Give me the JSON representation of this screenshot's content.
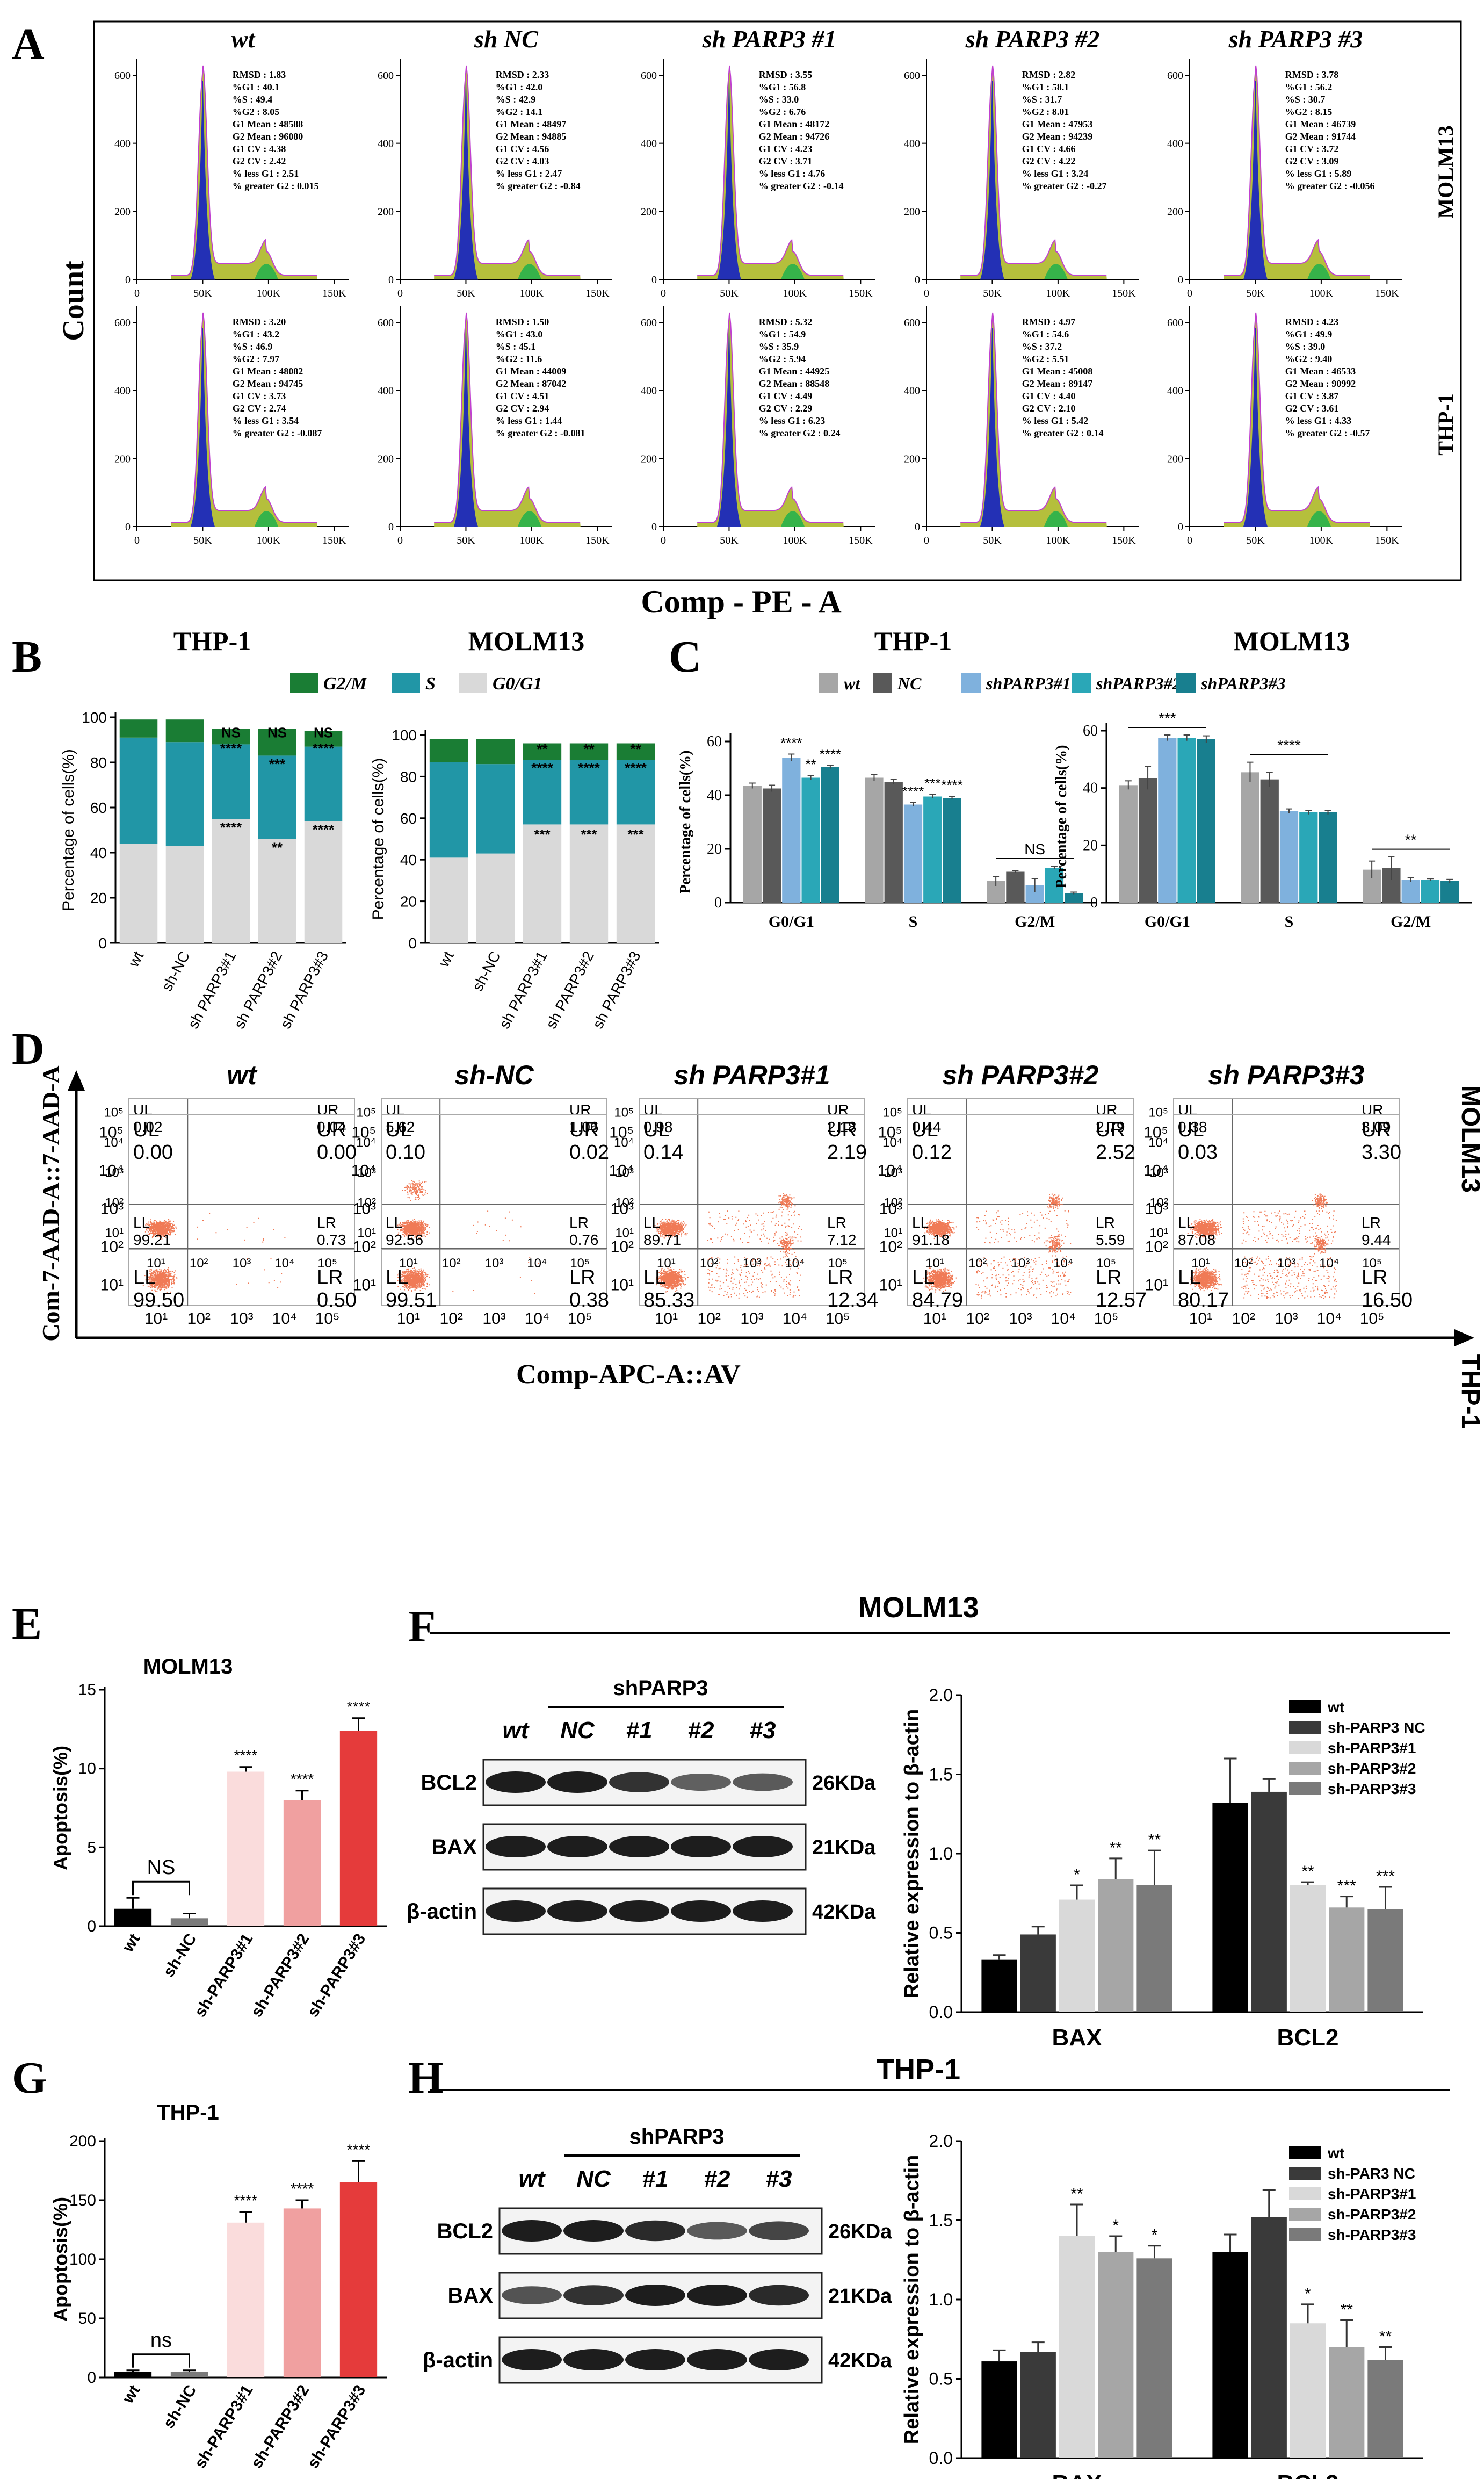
{
  "colors": {
    "g2m": "#1a7d34",
    "s": "#2196a6",
    "g0g1": "#d9d9d9",
    "bar_wt": "#a6a6a6",
    "bar_nc": "#595959",
    "bar_sh1": "#7fb1dd",
    "bar_sh2": "#2aa7b7",
    "bar_sh3": "#187f8f",
    "flow_fill": "#b5bf3c",
    "flow_g1": "#2330b5",
    "flow_g2": "#36b34a",
    "dot": "#f07a56",
    "apo1": "#000000",
    "apo2": "#7a7a7a",
    "apo3": "#fadcdc",
    "apo4": "#f0a0a0",
    "apo5": "#e53b3b"
  },
  "panelA": {
    "letter": "A",
    "ylabel": "Count",
    "xlabel": "Comp - PE - A",
    "cols": [
      "wt",
      "sh NC",
      "sh PARP3 #1",
      "sh PARP3 #2",
      "sh PARP3 #3"
    ],
    "rows": [
      "MOLM13",
      "THP-1"
    ],
    "xticks": [
      "0",
      "50K",
      "100K",
      "150K"
    ],
    "yticks_top": [
      "600",
      "400",
      "200",
      "0"
    ],
    "stats": [
      [
        [
          "RMSD : 1.83",
          "%G1 : 40.1",
          "%S : 49.4",
          "%G2 : 8.05",
          "G1 Mean : 48588",
          "G2 Mean : 96080",
          "G1 CV : 4.38",
          "G2 CV : 2.42",
          "% less G1 : 2.51",
          "% greater G2 : 0.015"
        ],
        [
          "RMSD : 2.33",
          "%G1 : 42.0",
          "%S : 42.9",
          "%G2 : 14.1",
          "G1 Mean : 48497",
          "G2 Mean : 94885",
          "G1 CV : 4.56",
          "G2 CV : 4.03",
          "% less G1 : 2.47",
          "% greater G2 : -0.84"
        ],
        [
          "RMSD : 3.55",
          "%G1 : 56.8",
          "%S : 33.0",
          "%G2 : 6.76",
          "G1 Mean : 48172",
          "G2 Mean : 94726",
          "G1 CV : 4.23",
          "G2 CV : 3.71",
          "% less G1 : 4.76",
          "% greater G2 : -0.14"
        ],
        [
          "RMSD : 2.82",
          "%G1 : 58.1",
          "%S : 31.7",
          "%G2 : 8.01",
          "G1 Mean : 47953",
          "G2 Mean : 94239",
          "G1 CV : 4.66",
          "G2 CV : 4.22",
          "% less G1 : 3.24",
          "% greater G2 : -0.27"
        ],
        [
          "RMSD : 3.78",
          "%G1 : 56.2",
          "%S : 30.7",
          "%G2 : 8.15",
          "G1 Mean : 46739",
          "G2 Mean : 91744",
          "G1 CV : 3.72",
          "G2 CV : 3.09",
          "% less G1 : 5.89",
          "% greater G2 : -0.056"
        ]
      ],
      [
        [
          "RMSD : 3.20",
          "%G1 : 43.2",
          "%S : 46.9",
          "%G2 : 7.97",
          "G1 Mean : 48082",
          "G2 Mean : 94745",
          "G1 CV : 3.73",
          "G2 CV : 2.74",
          "% less G1 : 3.54",
          "% greater G2 : -0.087"
        ],
        [
          "RMSD : 1.50",
          "%G1 : 43.0",
          "%S : 45.1",
          "%G2 : 11.6",
          "G1 Mean : 44009",
          "G2 Mean : 87042",
          "G1 CV : 4.51",
          "G2 CV : 2.94",
          "% less G1 : 1.44",
          "% greater G2 : -0.081"
        ],
        [
          "RMSD : 5.32",
          "%G1 : 54.9",
          "%S : 35.9",
          "%G2 : 5.94",
          "G1 Mean : 44925",
          "G2 Mean : 88548",
          "G1 CV : 4.49",
          "G2 CV : 2.29",
          "% less G1 : 6.23",
          "% greater G2 : 0.24"
        ],
        [
          "RMSD : 4.97",
          "%G1 : 54.6",
          "%S : 37.2",
          "%G2 : 5.51",
          "G1 Mean : 45008",
          "G2 Mean : 89147",
          "G1 CV : 4.40",
          "G2 CV : 2.10",
          "% less G1 : 5.42",
          "% greater G2 : 0.14"
        ],
        [
          "RMSD : 4.23",
          "%G1 : 49.9",
          "%S : 39.0",
          "%G2 : 9.40",
          "G1 Mean : 46533",
          "G2 Mean : 90992",
          "G1 CV : 3.87",
          "G2 CV : 3.61",
          "% less G1 : 4.33",
          "% greater G2 : -0.57"
        ]
      ]
    ]
  },
  "panelB": {
    "letter": "B",
    "legend": [
      "G2/M",
      "S",
      "G0/G1"
    ],
    "ylabel": "Percentage of cells(%)",
    "yticks": [
      "0",
      "20",
      "40",
      "60",
      "80",
      "100"
    ],
    "categories": [
      "wt",
      "sh-NC",
      "sh PARP3#1",
      "sh PARP3#2",
      "sh PARP3#3"
    ]
  },
  "panelC": {
    "letter": "C",
    "legend": [
      "wt",
      "NC",
      "shPARP3#1",
      "shPARP3#2",
      "shPARP3#3"
    ],
    "ylabel": "Percentage of cells(%)",
    "groups": [
      "G0/G1",
      "S",
      "G2/M"
    ]
  },
  "panelD": {
    "letter": "D",
    "cols": [
      "wt",
      "sh-NC",
      "sh PARP3#1",
      "sh PARP3#2",
      "sh PARP3#3"
    ],
    "rows": [
      "MOLM13",
      "THP-1"
    ],
    "ylabel": "Com-7-AAD-A::7-AAD-A",
    "xlabel": "Comp-APC-A::AV",
    "q_labels": [
      "UL",
      "UR",
      "LL",
      "LR"
    ],
    "ticks": [
      "10¹",
      "10²",
      "10³",
      "10⁴",
      "10⁵"
    ],
    "quadrants": [
      [
        [
          "0.02",
          "0.04",
          "99.21",
          "0.73"
        ],
        [
          "5.62",
          "1.06",
          "92.56",
          "0.76"
        ],
        [
          "0.98",
          "2.18",
          "89.71",
          "7.12"
        ],
        [
          "0.44",
          "2.79",
          "91.18",
          "5.59"
        ],
        [
          "0.38",
          "3.09",
          "87.08",
          "9.44"
        ]
      ],
      [
        [
          "0.00",
          "0.00",
          "99.50",
          "0.50"
        ],
        [
          "0.10",
          "0.02",
          "99.51",
          "0.38"
        ],
        [
          "0.14",
          "2.19",
          "85.33",
          "12.34"
        ],
        [
          "0.12",
          "2.52",
          "84.79",
          "12.57"
        ],
        [
          "0.03",
          "3.30",
          "80.17",
          "16.50"
        ]
      ]
    ]
  },
  "panelE": {
    "letter": "E",
    "title": "MOLM13",
    "ylabel": "Apoptosis(%)",
    "yticks": [
      "0",
      "5",
      "10",
      "15"
    ],
    "ns": "NS"
  },
  "panelG": {
    "letter": "G",
    "title": "THP-1",
    "ylabel": "Apoptosis(%)",
    "yticks": [
      "0",
      "50",
      "100",
      "150",
      "200"
    ],
    "ns": "ns"
  },
  "panelF": {
    "letter": "F",
    "title": "MOLM13",
    "group_label": "shPARP3",
    "lanes": [
      "wt",
      "NC",
      "#1",
      "#2",
      "#3"
    ],
    "proteins": [
      "BCL2",
      "BAX",
      "β-actin"
    ],
    "sizes": [
      "26KDa",
      "21KDa",
      "42KDa"
    ],
    "ylabel": "Relative expression to β-actin",
    "yticks": [
      "0.0",
      "0.5",
      "1.0",
      "1.5",
      "2.0"
    ],
    "legend": [
      "wt",
      "sh-PARP3 NC",
      "sh-PARP3#1",
      "sh-PARP3#2",
      "sh-PARP3#3"
    ]
  },
  "panelH": {
    "letter": "H",
    "title": "THP-1",
    "group_label": "shPARP3",
    "lanes": [
      "wt",
      "NC",
      "#1",
      "#2",
      "#3"
    ],
    "proteins": [
      "BCL2",
      "BAX",
      "β-actin"
    ],
    "sizes": [
      "26KDa",
      "21KDa",
      "42KDa"
    ],
    "ylabel": "Relative expression to β-actin",
    "yticks": [
      "0.0",
      "0.5",
      "1.0",
      "1.5",
      "2.0"
    ],
    "legend": [
      "wt",
      "sh-PAR3 NC",
      "sh-PARP3#1",
      "sh-PARP3#2",
      "sh-PARP3#3"
    ]
  },
  "chart_data": [
    {
      "id": "B-THP1",
      "type": "bar",
      "stacked": true,
      "title": "THP-1",
      "categories": [
        "wt",
        "sh-NC",
        "sh PARP3#1",
        "sh PARP3#2",
        "sh PARP3#3"
      ],
      "series": [
        {
          "name": "G0/G1",
          "values": [
            44,
            43,
            55,
            46,
            54
          ]
        },
        {
          "name": "S",
          "values": [
            47,
            46,
            33,
            37,
            33
          ]
        },
        {
          "name": "G2/M",
          "values": [
            8,
            10,
            7,
            12,
            7
          ]
        }
      ],
      "annotations": [
        {
          "category": 2,
          "level": 93,
          "text": "NS"
        },
        {
          "category": 2,
          "level": 86,
          "text": "****"
        },
        {
          "category": 2,
          "level": 51,
          "text": "****"
        },
        {
          "category": 3,
          "level": 93,
          "text": "NS"
        },
        {
          "category": 3,
          "level": 79,
          "text": "***"
        },
        {
          "category": 3,
          "level": 42,
          "text": "**"
        },
        {
          "category": 4,
          "level": 93,
          "text": "NS"
        },
        {
          "category": 4,
          "level": 86,
          "text": "****"
        },
        {
          "category": 4,
          "level": 50,
          "text": "****"
        }
      ],
      "ylabel": "Percentage of cells(%)",
      "ylim": [
        0,
        100
      ]
    },
    {
      "id": "B-MOLM13",
      "type": "bar",
      "stacked": true,
      "title": "MOLM13",
      "categories": [
        "wt",
        "sh-NC",
        "sh PARP3#1",
        "sh PARP3#2",
        "sh PARP3#3"
      ],
      "series": [
        {
          "name": "G0/G1",
          "values": [
            41,
            43,
            57,
            57,
            57
          ]
        },
        {
          "name": "S",
          "values": [
            46,
            43,
            31,
            31,
            31
          ]
        },
        {
          "name": "G2/M",
          "values": [
            11,
            12,
            8,
            8,
            8
          ]
        }
      ],
      "annotations": [
        {
          "category": 2,
          "level": 93,
          "text": "**"
        },
        {
          "category": 2,
          "level": 84,
          "text": "****"
        },
        {
          "category": 2,
          "level": 52,
          "text": "***"
        },
        {
          "category": 3,
          "level": 93,
          "text": "**"
        },
        {
          "category": 3,
          "level": 84,
          "text": "****"
        },
        {
          "category": 3,
          "level": 52,
          "text": "***"
        },
        {
          "category": 4,
          "level": 93,
          "text": "**"
        },
        {
          "category": 4,
          "level": 84,
          "text": "****"
        },
        {
          "category": 4,
          "level": 52,
          "text": "***"
        }
      ],
      "ylabel": "Percentage of cells(%)",
      "ylim": [
        0,
        100
      ]
    },
    {
      "id": "C-THP1",
      "type": "bar",
      "title": "THP-1",
      "categories": [
        "G0/G1",
        "S",
        "G2/M"
      ],
      "series": [
        {
          "name": "wt",
          "values": [
            43.5,
            46.5,
            8.0
          ],
          "errors": [
            1.0,
            1.2,
            1.8
          ]
        },
        {
          "name": "NC",
          "values": [
            42.5,
            45.0,
            11.5
          ],
          "errors": [
            1.2,
            0.8,
            0.5
          ]
        },
        {
          "name": "shPARP3#1",
          "values": [
            54.0,
            36.5,
            6.5
          ],
          "errors": [
            1.3,
            0.7,
            2.5
          ]
        },
        {
          "name": "shPARP3#2",
          "values": [
            46.5,
            39.5,
            13.0
          ],
          "errors": [
            0.8,
            0.7,
            0.6
          ]
        },
        {
          "name": "shPARP3#3",
          "values": [
            50.5,
            39.0,
            3.5
          ],
          "errors": [
            0.6,
            0.6,
            0.4
          ]
        }
      ],
      "annotations": [
        {
          "group": 0,
          "series": 2,
          "text": "****"
        },
        {
          "group": 0,
          "series": 3,
          "text": "**"
        },
        {
          "group": 0,
          "series": 4,
          "text": "****"
        },
        {
          "group": 1,
          "series": 2,
          "text": "****"
        },
        {
          "group": 1,
          "series": 3,
          "text": "***"
        },
        {
          "group": 1,
          "series": 4,
          "text": "****"
        },
        {
          "group": 2,
          "bracket": true,
          "text": "NS"
        }
      ],
      "ylabel": "Percentage of cells(%)",
      "ylim": [
        0,
        60
      ],
      "yticks": [
        0,
        20,
        40,
        60
      ]
    },
    {
      "id": "C-MOLM13",
      "type": "bar",
      "title": "MOLM13",
      "categories": [
        "G0/G1",
        "S",
        "G2/M"
      ],
      "series": [
        {
          "name": "wt",
          "values": [
            41.0,
            45.5,
            11.5
          ],
          "errors": [
            1.5,
            3.5,
            3.0
          ]
        },
        {
          "name": "NC",
          "values": [
            43.5,
            43.0,
            12.0
          ],
          "errors": [
            4.0,
            2.5,
            4.0
          ]
        },
        {
          "name": "shPARP3#1",
          "values": [
            57.5,
            32.0,
            8.0
          ],
          "errors": [
            1.0,
            0.7,
            0.7
          ]
        },
        {
          "name": "shPARP3#2",
          "values": [
            57.5,
            31.5,
            8.0
          ],
          "errors": [
            1.0,
            0.7,
            0.4
          ]
        },
        {
          "name": "shPARP3#3",
          "values": [
            57.0,
            31.5,
            7.5
          ],
          "errors": [
            1.2,
            0.7,
            0.6
          ]
        }
      ],
      "annotations": [
        {
          "group": 0,
          "bracket": true,
          "text": "***"
        },
        {
          "group": 1,
          "bracket": true,
          "text": "****"
        },
        {
          "group": 2,
          "bracket": true,
          "text": "**"
        }
      ],
      "ylabel": "Percentage of cells(%)",
      "ylim": [
        0,
        60
      ],
      "yticks": [
        0,
        20,
        40,
        60
      ]
    },
    {
      "id": "E",
      "type": "bar",
      "title": "MOLM13",
      "categories": [
        "wt",
        "sh-NC",
        "sh-PARP3#1",
        "sh-PARP3#2",
        "sh-PARP3#3"
      ],
      "values": [
        1.1,
        0.5,
        9.8,
        8.0,
        12.4
      ],
      "errors": [
        0.7,
        0.3,
        0.3,
        0.6,
        0.8
      ],
      "annotations": [
        "",
        "NS",
        "****",
        "****",
        "****"
      ],
      "ylabel": "Apoptosis(%)",
      "ylim": [
        0,
        15
      ],
      "yticks": [
        0,
        5,
        10,
        15
      ]
    },
    {
      "id": "G",
      "type": "bar",
      "title": "THP-1",
      "categories": [
        "wt",
        "sh-NC",
        "sh-PARP3#1",
        "sh-PARP3#2",
        "sh-PARP3#3"
      ],
      "values": [
        5,
        5,
        131,
        143,
        165
      ],
      "errors": [
        1,
        1,
        9,
        7,
        18
      ],
      "annotations": [
        "",
        "ns",
        "****",
        "****",
        "****"
      ],
      "ylabel": "Apoptosis(%)",
      "ylim": [
        0,
        200
      ],
      "yticks": [
        0,
        50,
        100,
        150,
        200
      ]
    },
    {
      "id": "F",
      "type": "bar",
      "title": "MOLM13",
      "categories": [
        "BAX",
        "BCL2"
      ],
      "series": [
        {
          "name": "wt",
          "values": [
            0.33,
            1.32
          ],
          "errors": [
            0.03,
            0.28
          ]
        },
        {
          "name": "sh-PARP3 NC",
          "values": [
            0.49,
            1.39
          ],
          "errors": [
            0.05,
            0.08
          ]
        },
        {
          "name": "sh-PARP3#1",
          "values": [
            0.71,
            0.8
          ],
          "errors": [
            0.09,
            0.02
          ]
        },
        {
          "name": "sh-PARP3#2",
          "values": [
            0.84,
            0.66
          ],
          "errors": [
            0.13,
            0.07
          ]
        },
        {
          "name": "sh-PARP3#3",
          "values": [
            0.8,
            0.65
          ],
          "errors": [
            0.22,
            0.14
          ]
        }
      ],
      "annotations": [
        [
          "",
          "",
          "*",
          "**",
          "**"
        ],
        [
          "",
          "",
          "**",
          "***",
          "***"
        ]
      ],
      "ylabel": "Relative expression to β-actin",
      "ylim": [
        0,
        2.0
      ]
    },
    {
      "id": "H",
      "type": "bar",
      "title": "THP-1",
      "categories": [
        "BAX",
        "BCL2"
      ],
      "series": [
        {
          "name": "wt",
          "values": [
            0.61,
            1.3
          ],
          "errors": [
            0.07,
            0.11
          ]
        },
        {
          "name": "sh-PAR3 NC",
          "values": [
            0.67,
            1.52
          ],
          "errors": [
            0.06,
            0.17
          ]
        },
        {
          "name": "sh-PARP3#1",
          "values": [
            1.4,
            0.85
          ],
          "errors": [
            0.2,
            0.12
          ]
        },
        {
          "name": "sh-PARP3#2",
          "values": [
            1.3,
            0.7
          ],
          "errors": [
            0.1,
            0.17
          ]
        },
        {
          "name": "sh-PARP3#3",
          "values": [
            1.26,
            0.62
          ],
          "errors": [
            0.08,
            0.08
          ]
        }
      ],
      "annotations": [
        [
          "",
          "",
          "**",
          "*",
          "*"
        ],
        [
          "",
          "",
          "*",
          "**",
          "**"
        ]
      ],
      "ylabel": "Relative expression to β-actin",
      "ylim": [
        0,
        2.0
      ]
    }
  ]
}
